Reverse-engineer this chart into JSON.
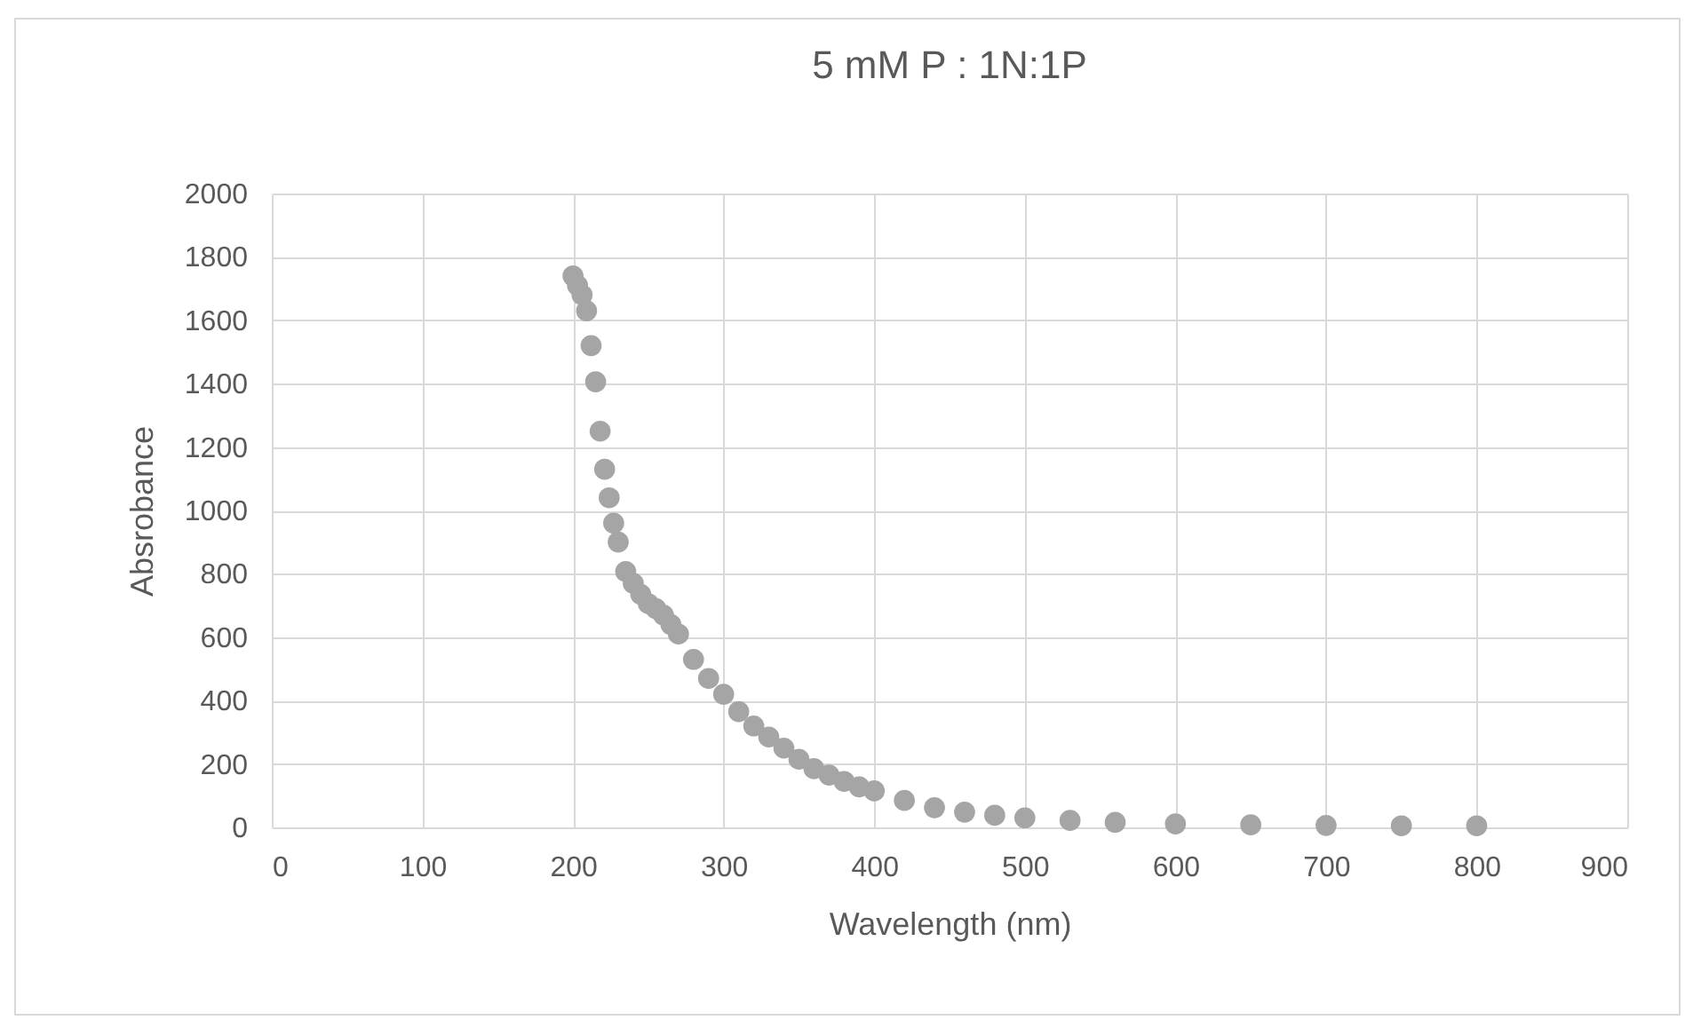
{
  "chart_data": {
    "type": "scatter",
    "title": "5 mM P : 1N:1P",
    "xlabel": "Wavelength (nm)",
    "ylabel": "Absrobance",
    "color": "#a5a5a5",
    "marker": "circle",
    "grid": true,
    "xlim": [
      0,
      900
    ],
    "xticks": [
      0,
      100,
      200,
      300,
      400,
      500,
      600,
      700,
      800,
      900
    ],
    "ylim": [
      0,
      2000
    ],
    "yticks": [
      0,
      200,
      400,
      600,
      800,
      1000,
      1200,
      1400,
      1600,
      1800,
      2000
    ],
    "x": [
      200,
      203,
      206,
      209,
      212,
      215,
      218,
      221,
      224,
      227,
      230,
      235,
      240,
      245,
      250,
      255,
      260,
      265,
      270,
      280,
      290,
      300,
      310,
      320,
      330,
      340,
      350,
      360,
      370,
      380,
      390,
      400,
      420,
      440,
      460,
      480,
      500,
      530,
      560,
      600,
      650,
      700,
      750,
      800
    ],
    "values": [
      1740,
      1710,
      1680,
      1630,
      1520,
      1406,
      1250,
      1130,
      1040,
      960,
      900,
      807,
      770,
      735,
      706,
      690,
      670,
      640,
      610,
      530,
      470,
      420,
      365,
      320,
      285,
      250,
      215,
      185,
      165,
      145,
      128,
      115,
      85,
      62,
      48,
      38,
      30,
      22,
      16,
      11,
      8,
      6,
      5,
      5
    ]
  }
}
